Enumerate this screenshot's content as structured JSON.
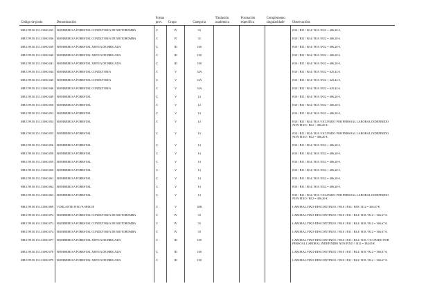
{
  "headers": {
    "codigo": "Código de posto",
    "denominacion": "Denominación",
    "forma": "Forma prov.",
    "grupo": "Grupo",
    "categoria": "Categoría",
    "titulacion": "Titulación académica",
    "formacion": "Formación específica",
    "complemento": "Complemento singularidade",
    "observaciones": "Observacións"
  },
  "rows": [
    {
      "code": "MR.C99.50.151.31060.035",
      "den": "BOMBEIRO/A FORESTAL CONDUTOR/A DE MOTOBOMBA",
      "forma": "C",
      "grupo": "IV",
      "cat": "33",
      "obs": "B10 / B11 / B14 / B18 / B12 = 406,20 €."
    },
    {
      "code": "MR.C99.50.151.31060.036",
      "den": "BOMBEIRO/A FORESTAL CONDUTOR/A DE MOTOBOMBA",
      "forma": "C",
      "grupo": "IV",
      "cat": "33",
      "obs": "B10 / B11 / B14 / B18 / B12 = 406,20 €."
    },
    {
      "code": "MR.C99.50.151.31060.039",
      "den": "BOMBEIRO/A FORESTAL XEFE/A DE BRIGADA",
      "forma": "C",
      "grupo": "III",
      "cat": "100",
      "obs": "B10 / B11 / B14 / B18 / B12 = 406,20 €."
    },
    {
      "code": "MR.C99.50.151.31060.040",
      "den": "BOMBEIRO/A FORESTAL XEFE/A DE BRIGADA",
      "forma": "C",
      "grupo": "III",
      "cat": "100",
      "obs": "B10 / B11 / B14 / B18 / B12 = 406,20 €."
    },
    {
      "code": "MR.C99.50.151.31060.041",
      "den": "BOMBEIRO/A FORESTAL XEFE/A DE BRIGADA",
      "forma": "C",
      "grupo": "III",
      "cat": "100",
      "obs": "B10 / B11 / B14 / B18 / B12 = 406,20 €."
    },
    {
      "code": "MR.C99.50.151.31060.044",
      "den": "BOMBEIRO/A FORESTAL CONDUTOR/A",
      "forma": "C",
      "grupo": "V",
      "cat": "14A",
      "obs": "B10 / B11 / B14 / B18 / B12 = 625,44 €."
    },
    {
      "code": "MR.C99.50.151.31060.045",
      "den": "BOMBEIRO/A FORESTAL CONDUTOR/A",
      "forma": "C",
      "grupo": "V",
      "cat": "14A",
      "obs": "B10 / B11 / B14 / B18 / B12 = 625,44 €."
    },
    {
      "code": "MR.C99.50.151.31060.046",
      "den": "BOMBEIRO/A FORESTAL CONDUTOR/A",
      "forma": "C",
      "grupo": "V",
      "cat": "14A",
      "obs": "B10 / B11 / B14 / B18 / B12 = 625,44 €."
    },
    {
      "code": "MR.C99.50.151.31060.049",
      "den": "BOMBEIRO/A FORESTAL",
      "forma": "C",
      "grupo": "V",
      "cat": "14",
      "obs": "B10 / B11 / B14 / B18 / B12 = 406,20 €."
    },
    {
      "code": "MR.C99.50.151.31060.050",
      "den": "BOMBEIRO/A FORESTAL",
      "forma": "C",
      "grupo": "V",
      "cat": "14",
      "obs": "B10 / B11 / B14 / B18 / B12 = 406,20 €."
    },
    {
      "code": "MR.C99.50.151.31060.053",
      "den": "BOMBEIRO/A FORESTAL",
      "forma": "C",
      "grupo": "V",
      "cat": "14",
      "obs": "B10 / B11 / B14 / B18 / B12 = 406,20 €."
    },
    {
      "code": "MR.C99.50.151.31060.054",
      "den": "BOMBEIRO/A FORESTAL",
      "forma": "C",
      "grupo": "V",
      "cat": "14",
      "obs": "B10 / B11 / B14 / B18 / OCUPADO POR PERSOAL LABORAL INDEFINIDO NON FIXO / B12 = 406,20 €."
    },
    {
      "code": "MR.C99.50.151.31060.055",
      "den": "BOMBEIRO/A FORESTAL",
      "forma": "C",
      "grupo": "V",
      "cat": "14",
      "obs": "B10 / B11 / B14 / B18 / OCUPADO POR PERSOAL LABORAL INDEFINIDO NON FIXO / B12 = 406,20 €."
    },
    {
      "code": "MR.C99.50.151.31060.056",
      "den": "BOMBEIRO/A FORESTAL",
      "forma": "C",
      "grupo": "V",
      "cat": "14",
      "obs": "B10 / B11 / B14 / B18 / B12 = 406,20 €."
    },
    {
      "code": "MR.C99.50.151.31060.058",
      "den": "BOMBEIRO/A FORESTAL",
      "forma": "C",
      "grupo": "V",
      "cat": "14",
      "obs": "B10 / B11 / B14 / B18 / B12 = 406,20 €."
    },
    {
      "code": "MR.C99.50.151.31060.059",
      "den": "BOMBEIRO/A FORESTAL",
      "forma": "C",
      "grupo": "V",
      "cat": "14",
      "obs": "B10 / B11 / B14 / B18 / B12 = 406,20 €."
    },
    {
      "code": "MR.C99.50.151.31060.060",
      "den": "BOMBEIRO/A FORESTAL",
      "forma": "C",
      "grupo": "V",
      "cat": "14",
      "obs": "B10 / B11 / B14 / B18 / B12 = 406,20 €."
    },
    {
      "code": "MR.C99.50.151.31060.061",
      "den": "BOMBEIRO/A FORESTAL",
      "forma": "C",
      "grupo": "V",
      "cat": "14",
      "obs": "B10 / B11 / B14 / B18 / B12 = 406,20 €."
    },
    {
      "code": "MR.C99.50.151.31060.062",
      "den": "BOMBEIRO/A FORESTAL",
      "forma": "C",
      "grupo": "V",
      "cat": "14",
      "obs": "B10 / B11 / B14 / B18 / B12 = 406,20 €."
    },
    {
      "code": "MR.C99.50.151.31060.063",
      "den": "BOMBEIRO/A FORESTAL",
      "forma": "C",
      "grupo": "V",
      "cat": "14",
      "obs": "B10 / B11 / B14 / B18 / OCUPADO POR PERSOAL LABORAL INDEFINIDO NON FIXO / B12 = 406,20 €."
    },
    {
      "code": "MR.C99.50.151.31060.069",
      "den": "VIXILANTE FIXO/A SPDCIF",
      "forma": "C",
      "grupo": "V",
      "cat": "10B",
      "obs": "LABORAL FIXO-DESCONTINUO // B10 / B14 / B18 / B12 = 366,67 €."
    },
    {
      "code": "MR.C99.50.151.31060.072",
      "den": "BOMBEIRO/A FORESTAL CONDUTOR/A DE MOTOBOMBA",
      "forma": "C",
      "grupo": "IV",
      "cat": "33",
      "obs": "LABORAL FIXO-DESCONTINUO // B10 / B11 / B14 / B18 / B12 = 366,67 €."
    },
    {
      "code": "MR.C99.50.151.31060.073",
      "den": "BOMBEIRO/A FORESTAL CONDUTOR/A DE MOTOBOMBA",
      "forma": "C",
      "grupo": "IV",
      "cat": "33",
      "obs": "LABORAL FIXO-DESCONTINUO // B10 / B11 / B14 / B18 / B12 = 366,67 €."
    },
    {
      "code": "MR.C99.50.151.31060.074",
      "den": "BOMBEIRO/A FORESTAL CONDUTOR/A DE MOTOBOMBA",
      "forma": "C",
      "grupo": "IV",
      "cat": "33",
      "obs": "LABORAL FIXO-DESCONTINUO // B10 / B11 / B14 / B18 / B12 = 366,67 €."
    },
    {
      "code": "MR.C99.50.151.31060.077",
      "den": "BOMBEIRO/A FORESTAL XEFE/A DE BRIGADA",
      "forma": "C",
      "grupo": "III",
      "cat": "100",
      "obs": "LABORAL FIXO-DESCONTINUO // B10 / B11 / B14 / B18 / OCUPADO POR PERSOAL LABORAL INDEFINIDO NON FIXO // B12 = 384,65 €."
    },
    {
      "code": "MR.C99.50.151.31060.078",
      "den": "BOMBEIRO/A FORESTAL XEFE/A DE BRIGADA",
      "forma": "C",
      "grupo": "III",
      "cat": "100",
      "obs": "LABORAL FIXO-DESCONTINUO // B10 / B11 / B14 / B18 / B12 = 366,67 €."
    },
    {
      "code": "MR.C99.50.151.31060.079",
      "den": "BOMBEIRO/A FORESTAL XEFE/A DE BRIGADA",
      "forma": "C",
      "grupo": "III",
      "cat": "100",
      "obs": "LABORAL FIXO-DESCONTINUO // B10 / B11 / B14 / B18 / B12 = 366,67 €."
    }
  ]
}
